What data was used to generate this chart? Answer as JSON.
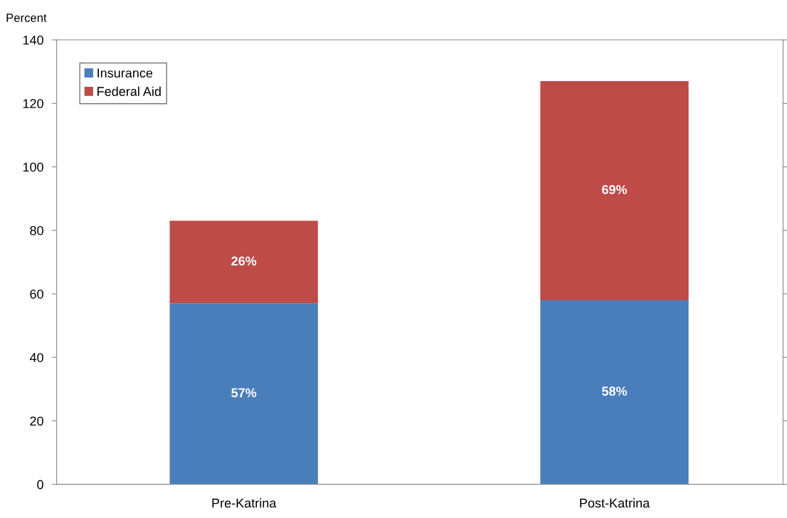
{
  "chart_data": {
    "type": "bar",
    "stacked": true,
    "ylabel": "Percent",
    "categories": [
      "Pre-Katrina",
      "Post-Katrina"
    ],
    "series": [
      {
        "name": "Insurance",
        "color": "#4a7ebb",
        "values": [
          57,
          58
        ],
        "value_labels": [
          "57%",
          "58%"
        ]
      },
      {
        "name": "Federal Aid",
        "color": "#be4b48",
        "values": [
          26,
          69
        ],
        "value_labels": [
          "26%",
          "69%"
        ]
      }
    ],
    "ylim": [
      0,
      140
    ],
    "yticks": [
      0,
      20,
      40,
      60,
      80,
      100,
      120,
      140
    ],
    "grid": false,
    "legend": "top left"
  }
}
